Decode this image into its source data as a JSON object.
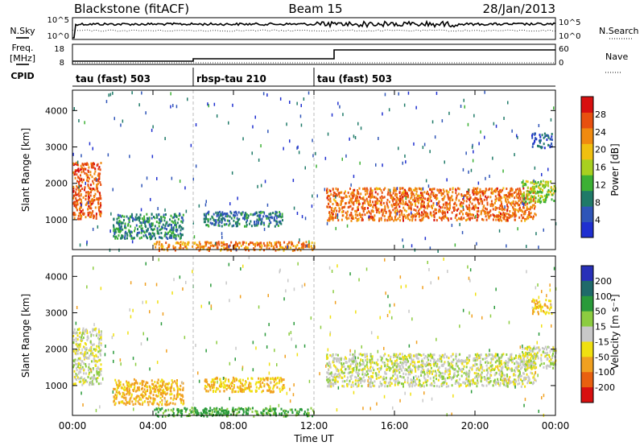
{
  "header": {
    "station": "Blackstone (fitACF)",
    "beam": "Beam 15",
    "date": "28/Jan/2013"
  },
  "side_labels": {
    "nsky": "N.Sky",
    "nsearch": "N.Search",
    "freq": "Freq.",
    "freq_unit": "[MHz]",
    "nave": "Nave",
    "cpid": "CPID"
  },
  "cpid_segments": [
    {
      "label": "tau (fast) 503",
      "start_hour": 0,
      "end_hour": 6
    },
    {
      "label": "rbsp-tau 210",
      "start_hour": 6,
      "end_hour": 12
    },
    {
      "label": "tau (fast) 503",
      "start_hour": 12,
      "end_hour": 24
    }
  ],
  "x_axis": {
    "label": "Time UT",
    "ticks": [
      "00:00",
      "04:00",
      "08:00",
      "12:00",
      "16:00",
      "20:00",
      "00:00"
    ],
    "range_hours": [
      0,
      24
    ]
  },
  "noise_axis": {
    "left_ticks": [
      "10^5",
      "10^0"
    ],
    "right_ticks": [
      "10^5",
      "10^0"
    ]
  },
  "freq_axis": {
    "left_ticks": [
      "18",
      "8"
    ],
    "right_ticks": [
      "60",
      "0"
    ]
  },
  "colors": {
    "power_scale": [
      "#1f2fd0",
      "#2f55b8",
      "#1f7a68",
      "#3cb034",
      "#a8d020",
      "#f0c010",
      "#f08a10",
      "#e85010",
      "#d81010"
    ],
    "velocity_scale": [
      "#2830b8",
      "#1f6a6a",
      "#2a9a3a",
      "#8ccc40",
      "#c8c8c8",
      "#f0e010",
      "#f0a020",
      "#e86010",
      "#d81010"
    ]
  },
  "chart_data": [
    {
      "type": "heatmap",
      "title": "",
      "ylabel": "Slant Range [km]",
      "xlabel": "",
      "ylim": [
        180,
        4560
      ],
      "y_ticks": [
        1000,
        2000,
        3000,
        4000
      ],
      "colorbar": {
        "label": "Power [dB]",
        "ticks": [
          4,
          8,
          12,
          16,
          20,
          24,
          28
        ],
        "range": [
          0,
          32
        ]
      },
      "regions": [
        {
          "name": "",
          "hours": [
            0.0,
            1.4
          ],
          "range_km": [
            1050,
            2600
          ],
          "value": 26
        },
        {
          "name": "",
          "hours": [
            2.0,
            5.5
          ],
          "range_km": [
            500,
            1200
          ],
          "value": 9
        },
        {
          "name": "",
          "hours": [
            6.5,
            10.5
          ],
          "range_km": [
            850,
            1250
          ],
          "value": 8
        },
        {
          "name": "",
          "hours": [
            4.0,
            12.0
          ],
          "range_km": [
            180,
            420
          ],
          "value": 24
        },
        {
          "name": "",
          "hours": [
            12.6,
            23.0
          ],
          "range_km": [
            1000,
            1900
          ],
          "value": 25
        },
        {
          "name": "",
          "hours": [
            22.3,
            24.0
          ],
          "range_km": [
            1500,
            2100
          ],
          "value": 15
        },
        {
          "name": "",
          "hours": [
            22.8,
            23.8
          ],
          "range_km": [
            3000,
            3400
          ],
          "value": 6
        }
      ]
    },
    {
      "type": "heatmap",
      "title": "",
      "ylabel": "Slant Range [km]",
      "xlabel": "Time UT",
      "ylim": [
        180,
        4560
      ],
      "y_ticks": [
        1000,
        2000,
        3000,
        4000
      ],
      "colorbar": {
        "label": "Velocity [m s⁻¹]",
        "ticks": [
          200,
          100,
          50,
          15,
          -15,
          -50,
          -100,
          -200
        ]
      },
      "regions": [
        {
          "name": "",
          "hours": [
            0.0,
            1.4
          ],
          "range_km": [
            1050,
            2600
          ],
          "value": 0
        },
        {
          "name": "",
          "hours": [
            2.0,
            5.5
          ],
          "range_km": [
            500,
            1200
          ],
          "value": -60
        },
        {
          "name": "",
          "hours": [
            6.5,
            10.5
          ],
          "range_km": [
            850,
            1250
          ],
          "value": -50
        },
        {
          "name": "",
          "hours": [
            4.0,
            12.0
          ],
          "range_km": [
            180,
            420
          ],
          "value": 60
        },
        {
          "name": "",
          "hours": [
            12.6,
            23.0
          ],
          "range_km": [
            1000,
            1900
          ],
          "value": 0
        },
        {
          "name": "",
          "hours": [
            22.3,
            24.0
          ],
          "range_km": [
            1500,
            2100
          ],
          "value": 0
        },
        {
          "name": "",
          "hours": [
            22.8,
            23.8
          ],
          "range_km": [
            3000,
            3400
          ],
          "value": -40
        }
      ]
    }
  ]
}
